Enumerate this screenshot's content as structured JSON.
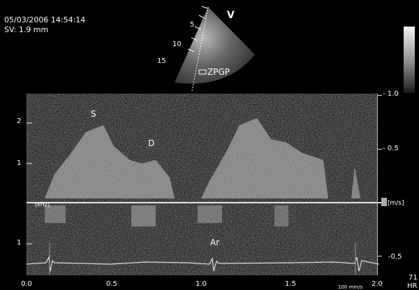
{
  "header": {
    "date_time": "05/03/2006 14:54:14",
    "sample_volume": "SV: 1.9 mm"
  },
  "sector": {
    "orientation_mark": "V",
    "depth_labels": [
      "5",
      "10",
      "15"
    ],
    "sample_label": "ZPGP"
  },
  "waves": {
    "s": "S",
    "d": "D",
    "ar": "Ar"
  },
  "left_scale": {
    "label_top": "2",
    "label_upper": "1",
    "label_lower": "1",
    "unit": "[kHz]"
  },
  "right_scale": {
    "v1": "- 1.0",
    "v2": "- 0.5",
    "v3": "-0.5",
    "unit": "[m/s]",
    "hr_value": "71",
    "hr_label": "HR"
  },
  "time_axis": {
    "t0": "0.0",
    "t1": "0.5",
    "t2": "1.0",
    "t3": "1.5",
    "t4": "2.0",
    "sweep": "100 mm/s"
  }
}
